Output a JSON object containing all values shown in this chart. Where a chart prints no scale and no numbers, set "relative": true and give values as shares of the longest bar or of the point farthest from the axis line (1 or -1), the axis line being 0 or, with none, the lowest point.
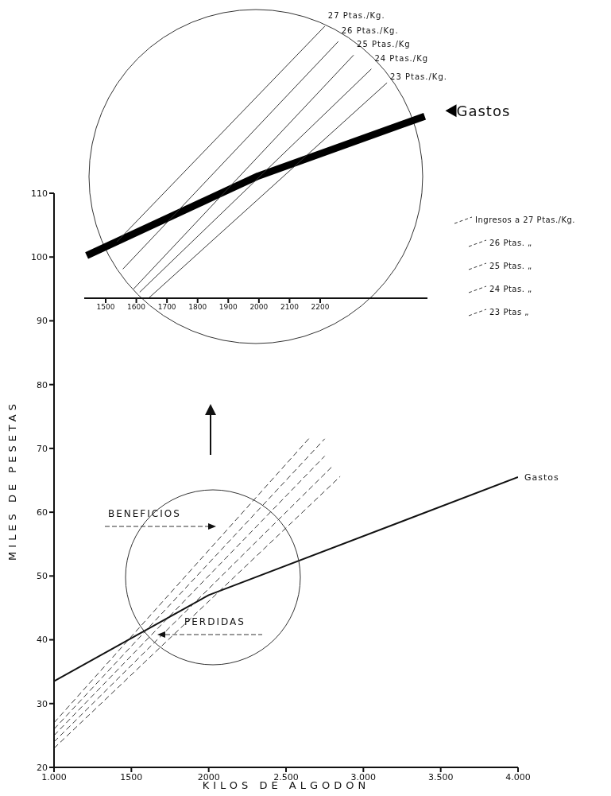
{
  "chart_data": [
    {
      "type": "line",
      "xlabel": "KILOS DE ALGODON",
      "ylabel": "MILES DE PESETAS",
      "xlim": [
        1000,
        4000
      ],
      "ylim": [
        20,
        110
      ],
      "xticks": [
        {
          "value": 1000,
          "label": "1.000"
        },
        1500,
        2000,
        {
          "value": 2500,
          "label": "2.500"
        },
        {
          "value": 3000,
          "label": "3.000"
        },
        {
          "value": 3500,
          "label": "3.500"
        },
        {
          "value": 4000,
          "label": "4.000"
        }
      ],
      "yticks": [
        20,
        30,
        40,
        50,
        60,
        70,
        80,
        90,
        100,
        110
      ],
      "series": [
        {
          "name": "Gastos",
          "color": "#111111",
          "line_style": "solid",
          "x": [
            1000,
            2000,
            4000
          ],
          "values": [
            33.5,
            47,
            65.5
          ]
        },
        {
          "name": "Ingresos a 27 Ptas./Kg.",
          "color": "#333333",
          "line_style": "dashed",
          "x": [
            1000,
            2650
          ],
          "values": [
            27,
            71.6
          ]
        },
        {
          "name": "26 Ptas. „",
          "color": "#333333",
          "line_style": "dashed",
          "x": [
            1000,
            2750
          ],
          "values": [
            26,
            71.5
          ]
        },
        {
          "name": "25 Ptas. „",
          "color": "#333333",
          "line_style": "dashed",
          "x": [
            1000,
            2750
          ],
          "values": [
            25,
            68.8
          ]
        },
        {
          "name": "24 Ptas. „",
          "color": "#333333",
          "line_style": "dashed",
          "x": [
            1000,
            2800
          ],
          "values": [
            24,
            67.2
          ]
        },
        {
          "name": "23 Ptas „",
          "color": "#333333",
          "line_style": "dashed",
          "x": [
            1000,
            2850
          ],
          "values": [
            23,
            65.6
          ]
        }
      ],
      "legend": "right",
      "marker": "none",
      "grid": false,
      "annotations": [
        "BENEFICIOS",
        "PERDIDAS"
      ]
    },
    {
      "type": "line",
      "relative": true,
      "xlim": [
        1430,
        2550
      ],
      "xticks": [
        1500,
        1600,
        1700,
        1800,
        1900,
        2000,
        2100,
        2200
      ],
      "tick_labels": "x",
      "marker": "none",
      "grid": false,
      "series": [
        {
          "name": "Gastos",
          "color": "#000000",
          "line_style": "solid",
          "x": [
            1438,
            1997,
            2541
          ],
          "values": [
            0.157,
            0.449,
            0.669
          ]
        },
        {
          "name": "27 Ptas./Kg.",
          "color": "#333333",
          "line_style": "solid",
          "x": [
            1537,
            2215
          ],
          "values": [
            0.208,
            1
          ]
        },
        {
          "name": "26 Ptas./Kg.",
          "color": "#333333",
          "line_style": "solid",
          "x": [
            1556,
            2259
          ],
          "values": [
            0.107,
            0.944
          ]
        },
        {
          "name": "25 Ptas./Kg",
          "color": "#333333",
          "line_style": "solid",
          "x": [
            1591,
            2309
          ],
          "values": [
            0.034,
            0.894
          ]
        },
        {
          "name": "24 Ptas./Kg",
          "color": "#333333",
          "line_style": "solid",
          "x": [
            1611,
            2367
          ],
          "values": [
            0.022,
            0.843
          ]
        },
        {
          "name": "23 Ptas./Kg.",
          "color": "#333333",
          "line_style": "solid",
          "x": [
            1640,
            2418
          ],
          "values": [
            0,
            0.792
          ]
        }
      ]
    }
  ]
}
